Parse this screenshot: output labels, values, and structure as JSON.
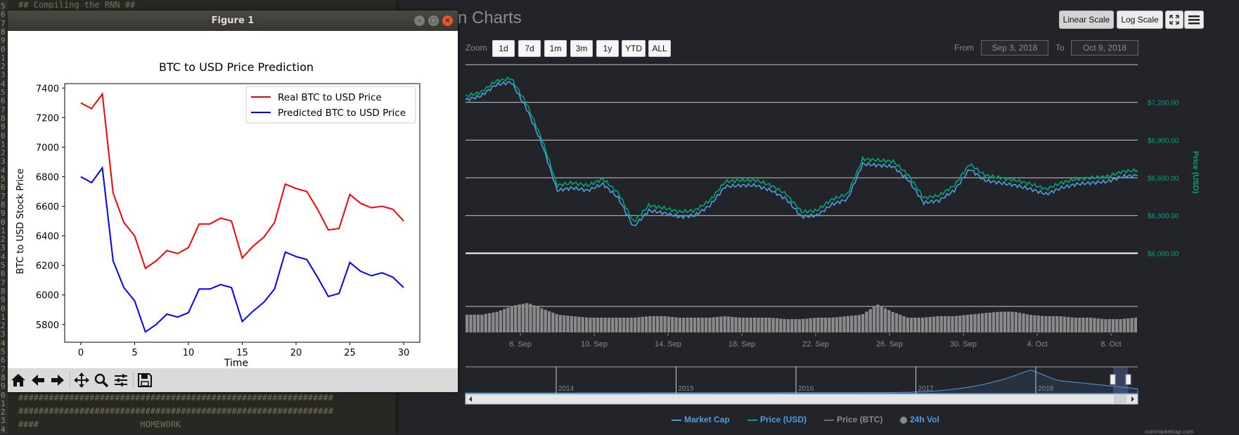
{
  "editor": {
    "lines_top": [
      "## Compiling the RNN ##"
    ],
    "lines_bottom": [
      "##############################################################",
      "##############################################################",
      "####                    HOMEWORK"
    ],
    "line_numbers": [
      "5",
      "6",
      "7",
      "8",
      "9",
      "0",
      "1",
      "2",
      "3",
      "4",
      "5",
      "6",
      "7",
      "8",
      "9",
      "0",
      "1",
      "2",
      "3",
      "4",
      "5",
      "6",
      "7",
      "8",
      "9",
      "0",
      "1",
      "2",
      "3",
      "4",
      "5",
      "6",
      "7",
      "8",
      "9",
      "0",
      "1",
      "2",
      "3",
      "4",
      "5",
      "6",
      "7",
      "8",
      "9",
      "0",
      "1",
      "2",
      "3",
      "4"
    ]
  },
  "figure": {
    "window_title": "Figure 1",
    "toolbar_icons": [
      "home-icon",
      "back-arrow-icon",
      "forward-arrow-icon",
      "pan-icon",
      "zoom-icon",
      "configure-subplots-icon",
      "save-icon"
    ]
  },
  "chart_data": [
    {
      "type": "line",
      "title": "BTC to USD Price Prediction",
      "xlabel": "Time",
      "ylabel": "BTC to USD Stock Price",
      "x": [
        0,
        1,
        2,
        3,
        4,
        5,
        6,
        7,
        8,
        9,
        10,
        11,
        12,
        13,
        14,
        15,
        16,
        17,
        18,
        19,
        20,
        21,
        22,
        23,
        24,
        25,
        26,
        27,
        28,
        29,
        30
      ],
      "xticks": [
        0,
        5,
        10,
        15,
        20,
        25,
        30
      ],
      "yticks": [
        5800,
        6000,
        6200,
        6400,
        6600,
        6800,
        7000,
        7200,
        7400
      ],
      "xlim": [
        -1.5,
        31.5
      ],
      "ylim": [
        5680,
        7430
      ],
      "legend_position": "top-right",
      "series": [
        {
          "name": "Real BTC to USD Price",
          "color": "#ff0000",
          "values": [
            7300,
            7260,
            7360,
            6690,
            6490,
            6400,
            6180,
            6230,
            6300,
            6280,
            6320,
            6480,
            6480,
            6520,
            6500,
            6250,
            6330,
            6390,
            6490,
            6750,
            6720,
            6700,
            6580,
            6440,
            6450,
            6680,
            6620,
            6590,
            6600,
            6580,
            6500
          ]
        },
        {
          "name": "Predicted BTC to USD Price",
          "color": "#0000ff",
          "values": [
            6800,
            6760,
            6860,
            6230,
            6050,
            5960,
            5750,
            5800,
            5870,
            5850,
            5880,
            6040,
            6040,
            6070,
            6050,
            5820,
            5890,
            5950,
            6040,
            6290,
            6260,
            6240,
            6120,
            5990,
            6010,
            6220,
            6160,
            6130,
            6150,
            6120,
            6050
          ]
        }
      ]
    },
    {
      "type": "line",
      "title": "",
      "x_ticks": [
        "6. Sep",
        "10. Sep",
        "14. Sep",
        "18. Sep",
        "22. Sep",
        "26. Sep",
        "30. Sep",
        "4. Oct",
        "8. Oct"
      ],
      "y_ticks": [
        "$6,000.00",
        "$6,300.00",
        "$6,600.00",
        "$6,900.00",
        "$7,200.00"
      ],
      "y_tick_values": [
        6000,
        6300,
        6600,
        6900,
        7200
      ],
      "ylabel": "Price (USD)",
      "ylim": [
        5790,
        7500
      ],
      "legend_position": "bottom",
      "series": [
        {
          "name": "Market Cap",
          "color": "#4c9ee0",
          "values": [
            7220,
            7250,
            7340,
            7360,
            7150,
            6870,
            6500,
            6520,
            6500,
            6550,
            6440,
            6210,
            6340,
            6320,
            6290,
            6300,
            6380,
            6530,
            6540,
            6540,
            6500,
            6430,
            6290,
            6300,
            6390,
            6430,
            6710,
            6700,
            6690,
            6580,
            6400,
            6420,
            6500,
            6670,
            6580,
            6560,
            6540,
            6510,
            6470,
            6520,
            6550,
            6560,
            6570,
            6610,
            6620
          ]
        },
        {
          "name": "Price (USD)",
          "color": "#00a676",
          "values": [
            7250,
            7280,
            7370,
            7390,
            7190,
            6910,
            6540,
            6560,
            6540,
            6590,
            6480,
            6250,
            6380,
            6360,
            6330,
            6340,
            6420,
            6570,
            6580,
            6580,
            6540,
            6470,
            6330,
            6340,
            6430,
            6470,
            6750,
            6740,
            6730,
            6620,
            6440,
            6460,
            6540,
            6710,
            6620,
            6600,
            6580,
            6550,
            6510,
            6560,
            6590,
            6600,
            6610,
            6650,
            6660
          ]
        },
        {
          "name": "Price (BTC)",
          "color": "#6a6a6a",
          "values": []
        },
        {
          "name": "24h Vol",
          "color": "#8a8a8a",
          "values": [
            0.6,
            0.6,
            0.7,
            0.9,
            1.0,
            0.8,
            0.6,
            0.55,
            0.5,
            0.5,
            0.5,
            0.5,
            0.55,
            0.55,
            0.5,
            0.5,
            0.5,
            0.55,
            0.5,
            0.5,
            0.5,
            0.45,
            0.45,
            0.5,
            0.5,
            0.55,
            0.6,
            0.95,
            0.7,
            0.5,
            0.5,
            0.55,
            0.55,
            0.6,
            0.65,
            0.7,
            0.7,
            0.6,
            0.55,
            0.55,
            0.5,
            0.5,
            0.45,
            0.45,
            0.5
          ]
        }
      ],
      "navigator_years": [
        "2014",
        "2015",
        "2016",
        "2017",
        "2018"
      ]
    }
  ],
  "cmc": {
    "title_fragment": "n Charts",
    "scale_buttons": [
      "Linear Scale",
      "Log Scale"
    ],
    "zoom_label": "Zoom",
    "zoom_buttons": [
      "1d",
      "7d",
      "1m",
      "3m",
      "1y",
      "YTD",
      "ALL"
    ],
    "from_label": "From",
    "from_value": "Sep 3, 2018",
    "to_label": "To",
    "to_value": "Oct 9, 2018",
    "credit": "coinmarketcap.com",
    "accent": "#00a676"
  }
}
